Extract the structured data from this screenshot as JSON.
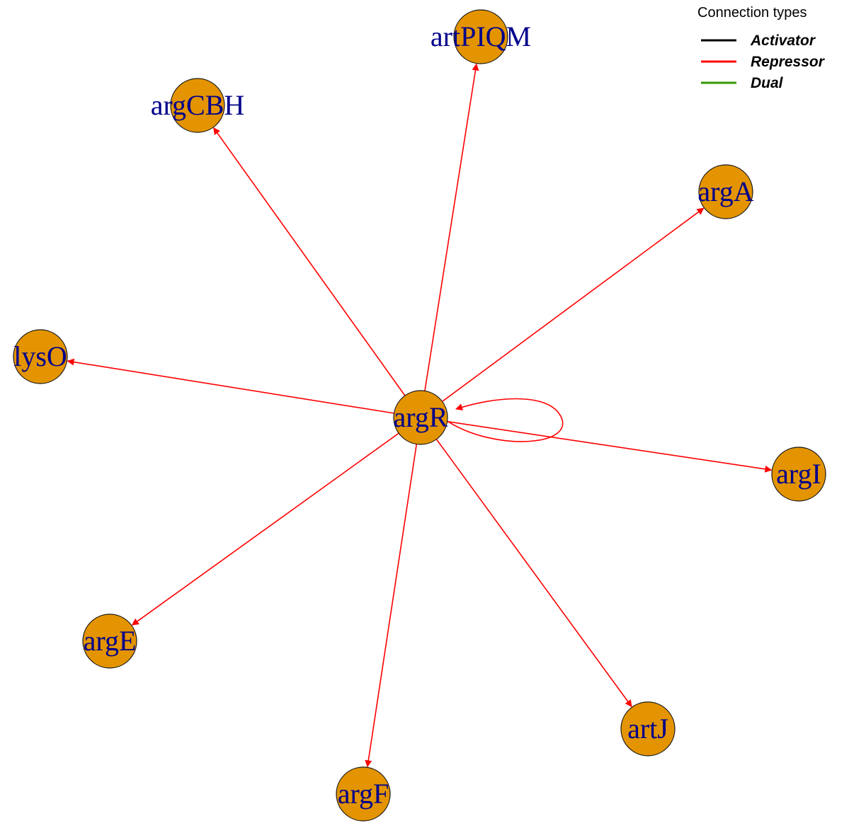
{
  "legend": {
    "title": "Connection types",
    "items": [
      {
        "label": "Activator",
        "color": "#000000"
      },
      {
        "label": "Repressor",
        "color": "#ff0000"
      },
      {
        "label": "Dual",
        "color": "#339900"
      }
    ]
  },
  "colors": {
    "node_fill": "#e39400",
    "node_stroke": "#1a1a1a",
    "label": "#00008b",
    "edge": "#ff0000"
  },
  "nodes": [
    {
      "id": "argR",
      "label": "argR"
    },
    {
      "id": "artPIQM",
      "label": "artPIQM"
    },
    {
      "id": "argCBH",
      "label": "argCBH"
    },
    {
      "id": "argA",
      "label": "argA"
    },
    {
      "id": "lysO",
      "label": "lysO"
    },
    {
      "id": "argI",
      "label": "argI"
    },
    {
      "id": "argE",
      "label": "argE"
    },
    {
      "id": "artJ",
      "label": "artJ"
    },
    {
      "id": "argF",
      "label": "argF"
    }
  ],
  "edges": [
    {
      "from": "argR",
      "to": "artPIQM",
      "type": "Repressor"
    },
    {
      "from": "argR",
      "to": "argCBH",
      "type": "Repressor"
    },
    {
      "from": "argR",
      "to": "argA",
      "type": "Repressor"
    },
    {
      "from": "argR",
      "to": "lysO",
      "type": "Repressor"
    },
    {
      "from": "argR",
      "to": "argI",
      "type": "Repressor"
    },
    {
      "from": "argR",
      "to": "argE",
      "type": "Repressor"
    },
    {
      "from": "argR",
      "to": "artJ",
      "type": "Repressor"
    },
    {
      "from": "argR",
      "to": "argF",
      "type": "Repressor"
    },
    {
      "from": "argR",
      "to": "argR",
      "type": "Repressor"
    }
  ]
}
